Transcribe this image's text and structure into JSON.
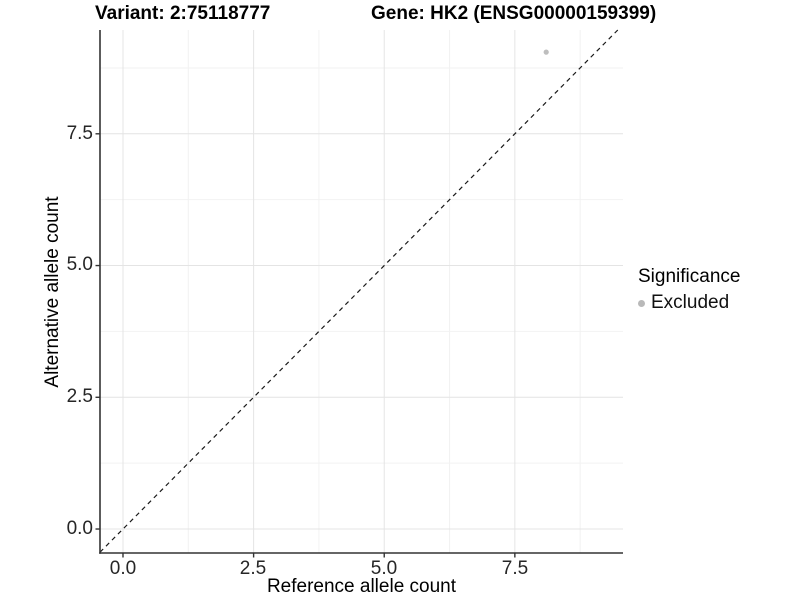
{
  "page": {
    "background": "#ffffff"
  },
  "chart_data": {
    "type": "scatter",
    "title": "Variant: 2:75118777 — Gene: HK2 (ENSG00000159399)",
    "titles": {
      "left": "Variant: 2:75118777",
      "right": "Gene: HK2 (ENSG00000159399)"
    },
    "xlabel": "Reference allele count",
    "ylabel": "Alternative allele count",
    "xlim": [
      -0.44,
      9.57
    ],
    "ylim": [
      -0.455,
      9.47
    ],
    "x_ticks": [
      0,
      2.5,
      5,
      7.5
    ],
    "y_ticks": [
      0,
      2.5,
      5,
      7.5
    ],
    "x_tick_labels": [
      "0.0",
      "2.5",
      "5.0",
      "7.5"
    ],
    "y_tick_labels": [
      "0.0",
      "2.5",
      "5.0",
      "7.5"
    ],
    "x_minor": [
      1.25,
      3.75,
      6.25,
      8.75
    ],
    "y_minor": [
      1.25,
      3.75,
      6.25,
      8.75
    ],
    "grid": true,
    "grid_major_color": "#e4e4e4",
    "grid_minor_color": "#f2f2f2",
    "axis_line_color": "#333333",
    "legend_position": "right",
    "reference_line": {
      "kind": "identity",
      "equation": "y = x",
      "style": "dashed",
      "color": "#1a1a1a"
    },
    "series": [
      {
        "name": "Excluded",
        "color": "#bebebe",
        "points": [
          {
            "x": 8.1,
            "y": 9.05
          }
        ]
      }
    ],
    "legend": {
      "title": "Significance",
      "items": [
        {
          "label": "Excluded",
          "color": "#b9b9b9",
          "marker": "circle"
        }
      ]
    }
  }
}
